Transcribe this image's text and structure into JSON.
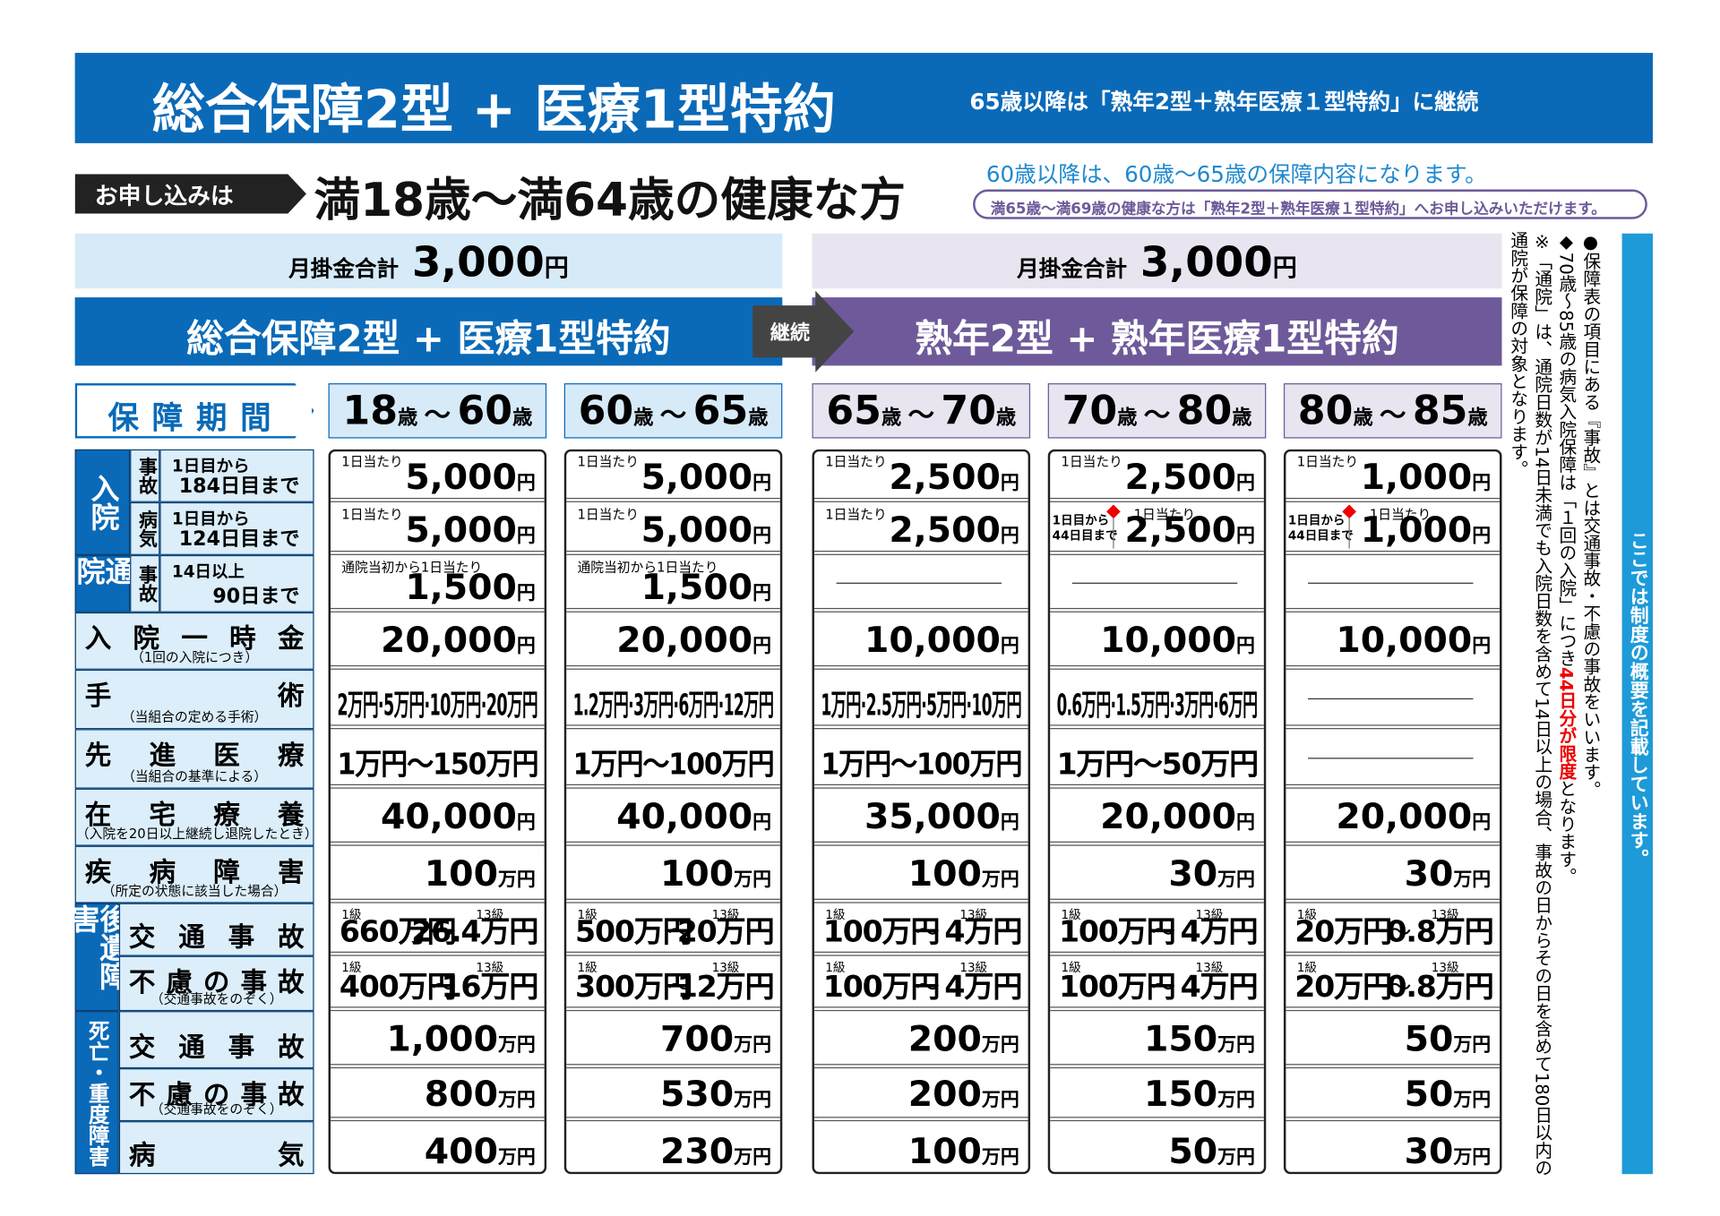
{
  "header": {
    "title": "総合保障2型 + 医療1型特約",
    "note": "65歳以降は「熟年2型＋熟年医療１型特約」に継続"
  },
  "apply": {
    "label": "お申し込みは",
    "text": "満18歳〜満64歳の健康な方",
    "note1": "60歳以降は、60歳〜65歳の保障内容になります。",
    "note2": "満65歳〜満69歳の健康な方は「熟年2型＋熟年医療１型特約」へお申し込みいただけます。"
  },
  "plans": [
    {
      "premium_label": "月掛金合計",
      "premium": "3,000",
      "premium_unit": "円",
      "name": "総合保障2型 + 医療1型特約"
    },
    {
      "premium_label": "月掛金合計",
      "premium": "3,000",
      "premium_unit": "円",
      "name": "熟年2型 + 熟年医療1型特約"
    }
  ],
  "continue": "継続",
  "period_label": "保障期間",
  "periods": [
    [
      "18",
      "歳",
      "〜",
      "60",
      "歳"
    ],
    [
      "60",
      "歳",
      "〜",
      "65",
      "歳"
    ],
    [
      "65",
      "歳",
      "〜",
      "70",
      "歳"
    ],
    [
      "70",
      "歳",
      "〜",
      "80",
      "歳"
    ],
    [
      "80",
      "歳",
      "〜",
      "85",
      "歳"
    ]
  ],
  "range_sep": "〜",
  "sections": [
    {
      "label": "入院",
      "rows": [
        {
          "sub": "事故",
          "label": [
            "1日目から",
            "184日目まで"
          ],
          "cells": [
            {
              "caption": "1日当たり",
              "value": "5,000",
              "unit": "円"
            },
            {
              "caption": "1日当たり",
              "value": "5,000",
              "unit": "円"
            },
            {
              "caption": "1日当たり",
              "value": "2,500",
              "unit": "円"
            },
            {
              "caption": "1日当たり",
              "value": "2,500",
              "unit": "円"
            },
            {
              "caption": "1日当たり",
              "value": "1,000",
              "unit": "円"
            }
          ]
        },
        {
          "sub": "病気",
          "label": [
            "1日目から",
            "124日目まで"
          ],
          "cells": [
            {
              "caption": "1日当たり",
              "value": "5,000",
              "unit": "円"
            },
            {
              "caption": "1日当たり",
              "value": "5,000",
              "unit": "円"
            },
            {
              "caption": "1日当たり",
              "value": "2,500",
              "unit": "円"
            },
            {
              "range": [
                "1日目から",
                "44日目まで"
              ],
              "caption": "1日当たり",
              "value": "2,500",
              "unit": "円"
            },
            {
              "range": [
                "1日目から",
                "44日目まで"
              ],
              "caption": "1日当たり",
              "value": "1,000",
              "unit": "円"
            }
          ]
        }
      ]
    },
    {
      "label": "通院",
      "rows": [
        {
          "sub": "事故",
          "label": [
            "14日以上",
            "90日まで"
          ],
          "cells": [
            {
              "caption": "通院当初から1日当たり",
              "value": "1,500",
              "unit": "円"
            },
            {
              "caption": "通院当初から1日当たり",
              "value": "1,500",
              "unit": "円"
            },
            null,
            null,
            null
          ]
        }
      ]
    },
    {
      "rows": [
        {
          "label": [
            "入院一時金"
          ],
          "note": "（1回の入院につき）",
          "cells": [
            {
              "value": "20,000",
              "unit": "円"
            },
            {
              "value": "20,000",
              "unit": "円"
            },
            {
              "value": "10,000",
              "unit": "円"
            },
            {
              "value": "10,000",
              "unit": "円"
            },
            {
              "value": "10,000",
              "unit": "円"
            }
          ]
        },
        {
          "label": [
            "手術"
          ],
          "note": "（当組合の定める手術）",
          "cells": [
            {
              "text": "2万円·5万円·10万円·20万円"
            },
            {
              "text": "1.2万円·3万円·6万円·12万円"
            },
            {
              "text": "1万円·2.5万円·5万円·10万円"
            },
            {
              "text": "0.6万円·1.5万円·3万円·6万円"
            },
            null
          ]
        },
        {
          "label": [
            "先進医療"
          ],
          "note": "（当組合の基準による）",
          "cells": [
            {
              "text": "1万円〜150万円"
            },
            {
              "text": "1万円〜100万円"
            },
            {
              "text": "1万円〜100万円"
            },
            {
              "text": "1万円〜50万円"
            },
            null
          ]
        },
        {
          "label": [
            "在宅療養"
          ],
          "note": "（入院を20日以上継続し退院したとき）",
          "cells": [
            {
              "value": "40,000",
              "unit": "円"
            },
            {
              "value": "40,000",
              "unit": "円"
            },
            {
              "value": "35,000",
              "unit": "円"
            },
            {
              "value": "20,000",
              "unit": "円"
            },
            {
              "value": "20,000",
              "unit": "円"
            }
          ]
        },
        {
          "label": [
            "疾病障害"
          ],
          "note": "（所定の状態に該当した場合）",
          "cells": [
            {
              "value": "100",
              "unit": "万円"
            },
            {
              "value": "100",
              "unit": "万円"
            },
            {
              "value": "100",
              "unit": "万円"
            },
            {
              "value": "30",
              "unit": "万円"
            },
            {
              "value": "30",
              "unit": "万円"
            }
          ]
        }
      ]
    },
    {
      "label": "後遺障害",
      "rows": [
        {
          "label": [
            "交通事故"
          ],
          "cells": [
            {
              "grades": [
                "1級",
                "13級"
              ],
              "min": "660万円",
              "max": "26.4万円"
            },
            {
              "grades": [
                "1級",
                "13級"
              ],
              "min": "500万円",
              "max": "20万円"
            },
            {
              "grades": [
                "1級",
                "13級"
              ],
              "min": "100万円",
              "max": "4万円"
            },
            {
              "grades": [
                "1級",
                "13級"
              ],
              "min": "100万円",
              "max": "4万円"
            },
            {
              "grades": [
                "1級",
                "13級"
              ],
              "min": "20万円",
              "max": "0.8万円"
            }
          ]
        },
        {
          "label": [
            "不慮の事故"
          ],
          "note": "（交通事故をのぞく）",
          "cells": [
            {
              "grades": [
                "1級",
                "13級"
              ],
              "min": "400万円",
              "max": "16万円"
            },
            {
              "grades": [
                "1級",
                "13級"
              ],
              "min": "300万円",
              "max": "12万円"
            },
            {
              "grades": [
                "1級",
                "13級"
              ],
              "min": "100万円",
              "max": "4万円"
            },
            {
              "grades": [
                "1級",
                "13級"
              ],
              "min": "100万円",
              "max": "4万円"
            },
            {
              "grades": [
                "1級",
                "13級"
              ],
              "min": "20万円",
              "max": "0.8万円"
            }
          ]
        }
      ]
    },
    {
      "label": "死亡・重度障害",
      "rows": [
        {
          "label": [
            "交通事故"
          ],
          "cells": [
            {
              "value": "1,000",
              "unit": "万円"
            },
            {
              "value": "700",
              "unit": "万円"
            },
            {
              "value": "200",
              "unit": "万円"
            },
            {
              "value": "150",
              "unit": "万円"
            },
            {
              "value": "50",
              "unit": "万円"
            }
          ]
        },
        {
          "label": [
            "不慮の事故"
          ],
          "note": "（交通事故をのぞく）",
          "cells": [
            {
              "value": "800",
              "unit": "万円"
            },
            {
              "value": "530",
              "unit": "万円"
            },
            {
              "value": "200",
              "unit": "万円"
            },
            {
              "value": "150",
              "unit": "万円"
            },
            {
              "value": "50",
              "unit": "万円"
            }
          ]
        },
        {
          "label": [
            "病気"
          ],
          "cells": [
            {
              "value": "400",
              "unit": "万円"
            },
            {
              "value": "230",
              "unit": "万円"
            },
            {
              "value": "100",
              "unit": "万円"
            },
            {
              "value": "50",
              "unit": "万円"
            },
            {
              "value": "30",
              "unit": "万円"
            }
          ]
        }
      ]
    }
  ],
  "notes": [
    [
      "●保障表の項目にある『事故』とは交通事故・不慮の事故をいいます。"
    ],
    [
      "◆70歳〜85歳の病気入院保障は「１回の入院」につき",
      "44日分が限度",
      "となります。"
    ],
    [
      "※「通院」は、通院日数が14日未満でも入院日数を含めて14日以上の場合、事故の日からその日を含めて180日以内の通院が保障の対象となります。"
    ]
  ],
  "side_banner": "ここでは制度の概要を記載しています。"
}
